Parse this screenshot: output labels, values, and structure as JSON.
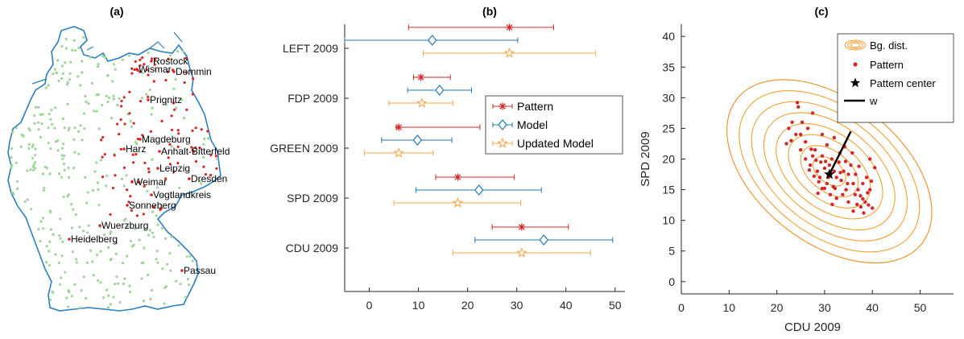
{
  "panels": {
    "a_title": "(a)",
    "b_title": "(b)",
    "c_title": "(c)"
  },
  "colors": {
    "pattern": "#d62728",
    "model": "#1f77b4",
    "updated": "#f5a64a",
    "bg_dot": "#9fd49a",
    "border": "#2a7fc1",
    "contour": "#f0a030",
    "axis": "#262626"
  },
  "map": {
    "cities": [
      {
        "name": "Rostock",
        "x": 190,
        "y": 80
      },
      {
        "name": "Wismar",
        "x": 172,
        "y": 90
      },
      {
        "name": "Demmin",
        "x": 218,
        "y": 93
      },
      {
        "name": "Prignitz",
        "x": 186,
        "y": 128
      },
      {
        "name": "Magdeburg",
        "x": 176,
        "y": 177
      },
      {
        "name": "Harz",
        "x": 156,
        "y": 189
      },
      {
        "name": "Anhalt-Bitterfeld",
        "x": 200,
        "y": 192
      },
      {
        "name": "Leipzig",
        "x": 198,
        "y": 213
      },
      {
        "name": "Dresden",
        "x": 237,
        "y": 226
      },
      {
        "name": "Weimar",
        "x": 166,
        "y": 230
      },
      {
        "name": "Vogtlandkreis",
        "x": 190,
        "y": 246
      },
      {
        "name": "Sonneberg",
        "x": 160,
        "y": 259
      },
      {
        "name": "Wuerzburg",
        "x": 126,
        "y": 284
      },
      {
        "name": "Heidelberg",
        "x": 88,
        "y": 301
      },
      {
        "name": "Passau",
        "x": 228,
        "y": 340
      }
    ]
  },
  "chart_data": [
    {
      "type": "errorbar",
      "title": "(b)",
      "categories": [
        "LEFT 2009",
        "FDP 2009",
        "GREEN 2009",
        "SPD 2009",
        "CDU 2009"
      ],
      "xlim": [
        -5,
        52
      ],
      "xticks": [
        0,
        10,
        20,
        30,
        40,
        50
      ],
      "grid": false,
      "legend_position": "right-middle",
      "series": [
        {
          "name": "Pattern",
          "marker": "asterisk",
          "values": [
            28.5,
            10.5,
            6,
            18,
            31
          ],
          "lower": [
            8,
            9,
            5.5,
            13.5,
            25
          ],
          "upper": [
            37.5,
            16.5,
            22.5,
            29.5,
            40.5
          ]
        },
        {
          "name": "Model",
          "marker": "diamond",
          "values": [
            12.8,
            14.3,
            9.8,
            22.3,
            35.5
          ],
          "lower": [
            -5,
            7.8,
            2.5,
            9.5,
            21.5
          ],
          "upper": [
            30.2,
            20.8,
            16.8,
            35,
            49.5
          ]
        },
        {
          "name": "Updated Model",
          "marker": "pentagram",
          "values": [
            28.5,
            10.7,
            6,
            18,
            31
          ],
          "lower": [
            11,
            4,
            -1,
            5,
            17
          ],
          "upper": [
            46,
            17,
            13,
            30.8,
            45
          ]
        }
      ]
    },
    {
      "type": "scatter",
      "title": "(c)",
      "xlabel": "CDU 2009",
      "ylabel": "SPD 2009",
      "xlim": [
        0,
        57
      ],
      "ylim": [
        -2,
        42
      ],
      "xticks": [
        0,
        10,
        20,
        30,
        40,
        50
      ],
      "yticks": [
        0,
        5,
        10,
        15,
        20,
        25,
        30,
        35,
        40
      ],
      "legend_position": "top-right",
      "legend": [
        "Bg. dist.",
        "Pattern",
        "Pattern center",
        "w"
      ],
      "contours": {
        "center": [
          31,
          18
        ],
        "rx_max": 15,
        "ry_max": 17.8,
        "angle_deg": -52,
        "levels": [
          1,
          0.88,
          0.76,
          0.64,
          0.52,
          0.4,
          0.28,
          0.16
        ]
      },
      "pattern_center": [
        31,
        17.5
      ],
      "w_vector": {
        "from": [
          31,
          17.5
        ],
        "to": [
          35.5,
          24.5
        ]
      },
      "points": [
        [
          24.3,
          29.2
        ],
        [
          24.5,
          28.5
        ],
        [
          22,
          22.5
        ],
        [
          22.5,
          25
        ],
        [
          23,
          23
        ],
        [
          23.2,
          26
        ],
        [
          24,
          24
        ],
        [
          25,
          24
        ],
        [
          26.5,
          25
        ],
        [
          27.5,
          27.5
        ],
        [
          29.5,
          24
        ],
        [
          32,
          23.5
        ],
        [
          25,
          21.5
        ],
        [
          26,
          20
        ],
        [
          27,
          19
        ],
        [
          27.5,
          20.5
        ],
        [
          28,
          21.5
        ],
        [
          28.5,
          18
        ],
        [
          29,
          17
        ],
        [
          29.2,
          19.5
        ],
        [
          29.5,
          20.5
        ],
        [
          30,
          18.5
        ],
        [
          30.5,
          16
        ],
        [
          30.8,
          17
        ],
        [
          31,
          19
        ],
        [
          31.5,
          20
        ],
        [
          31.8,
          15.5
        ],
        [
          32,
          18
        ],
        [
          32.5,
          17
        ],
        [
          33,
          19.5
        ],
        [
          33.5,
          16.5
        ],
        [
          34,
          18
        ],
        [
          34.5,
          15
        ],
        [
          35,
          17.5
        ],
        [
          35.5,
          19
        ],
        [
          36,
          16
        ],
        [
          36.5,
          17.5
        ],
        [
          37,
          15
        ],
        [
          37.5,
          14
        ],
        [
          38,
          13.5
        ],
        [
          38.5,
          13
        ],
        [
          39,
          14.5
        ],
        [
          39.5,
          15
        ],
        [
          40,
          12
        ],
        [
          38,
          16
        ],
        [
          37.2,
          18.8
        ],
        [
          35.8,
          21
        ],
        [
          34.2,
          22
        ],
        [
          33.2,
          21
        ],
        [
          30.5,
          22.3
        ],
        [
          28.8,
          16.3
        ],
        [
          27.8,
          17.2
        ],
        [
          26.8,
          18.2
        ],
        [
          29.5,
          15.2
        ],
        [
          31.2,
          14.2
        ],
        [
          32.5,
          13.6
        ],
        [
          33.8,
          14.2
        ],
        [
          35,
          13
        ],
        [
          36,
          11.5
        ],
        [
          36.8,
          12.6
        ],
        [
          38.2,
          11.2
        ],
        [
          39.2,
          12.5
        ],
        [
          40.5,
          18.6
        ],
        [
          39.5,
          20
        ],
        [
          38.8,
          17
        ],
        [
          32.2,
          15.2
        ],
        [
          34.8,
          16
        ],
        [
          33.3,
          17.8
        ],
        [
          30.2,
          19.6
        ],
        [
          28.2,
          19.8
        ],
        [
          27.2,
          21.6
        ],
        [
          26,
          22.8
        ],
        [
          25.3,
          26
        ],
        [
          34.4,
          19.6
        ],
        [
          36.4,
          14.2
        ],
        [
          37.6,
          12.2
        ],
        [
          39.8,
          16.4
        ],
        [
          31.6,
          12.6
        ],
        [
          30,
          15.2
        ],
        [
          28.6,
          14.4
        ]
      ]
    }
  ]
}
